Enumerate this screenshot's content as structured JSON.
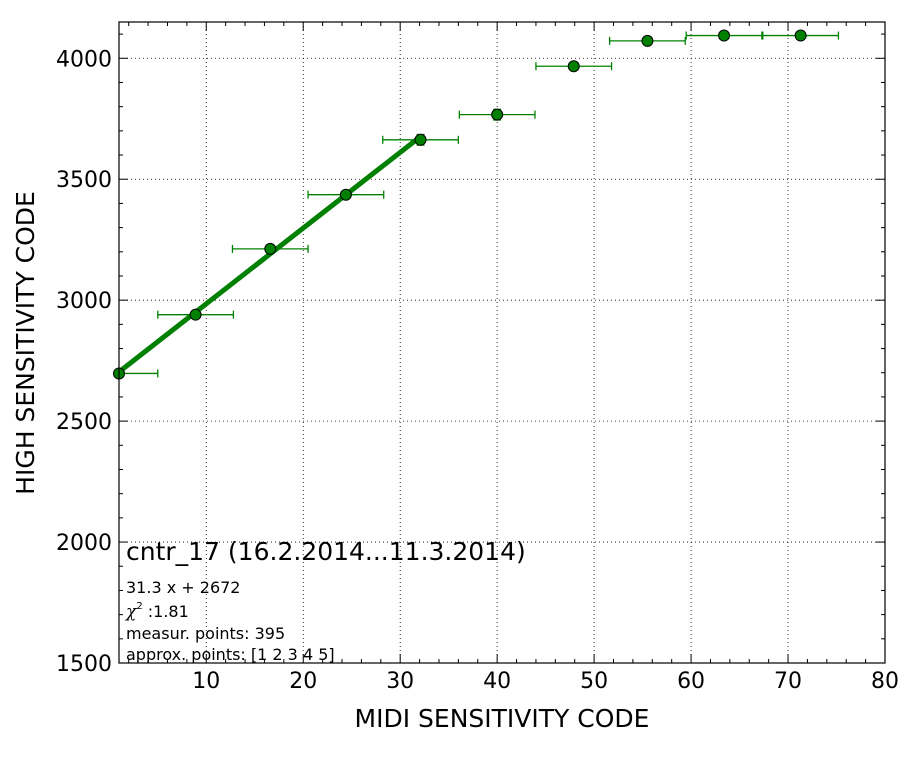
{
  "chart_data": {
    "type": "scatter",
    "title": "",
    "xlabel": "MIDI SENSITIVITY CODE",
    "ylabel": "HIGH SENSITIVITY CODE",
    "xlim": [
      1,
      80
    ],
    "ylim": [
      1500,
      4150
    ],
    "x_ticks": [
      10,
      20,
      30,
      40,
      50,
      60,
      70,
      80
    ],
    "y_ticks": [
      1500,
      2000,
      2500,
      3000,
      3500,
      4000
    ],
    "x_tick_labels": [
      "10",
      "20",
      "30",
      "40",
      "50",
      "60",
      "70",
      "80"
    ],
    "y_tick_labels": [
      "1500",
      "2000",
      "2500",
      "3000",
      "3500",
      "4000"
    ],
    "grid": true,
    "series": [
      {
        "type": "errorbar",
        "color": "#008000",
        "points": [
          {
            "x": 1.0,
            "y": 2697,
            "xerr": 4.0,
            "yerr": 10
          },
          {
            "x": 8.9,
            "y": 2940,
            "xerr": 3.9,
            "yerr": 10
          },
          {
            "x": 16.6,
            "y": 3212,
            "xerr": 3.9,
            "yerr": 10
          },
          {
            "x": 24.4,
            "y": 3436,
            "xerr": 3.9,
            "yerr": 10
          },
          {
            "x": 32.1,
            "y": 3663,
            "xerr": 3.9,
            "yerr": 22
          },
          {
            "x": 40.0,
            "y": 3767,
            "xerr": 3.9,
            "yerr": 22
          },
          {
            "x": 47.9,
            "y": 3967,
            "xerr": 3.9,
            "yerr": 10
          },
          {
            "x": 55.5,
            "y": 4072,
            "xerr": 3.9,
            "yerr": 10
          },
          {
            "x": 63.4,
            "y": 4094,
            "xerr": 3.9,
            "yerr": 10
          },
          {
            "x": 71.3,
            "y": 4094,
            "xerr": 3.9,
            "yerr": 10
          }
        ]
      },
      {
        "type": "fit-line",
        "color": "#008000",
        "slope": 31.3,
        "intercept": 2672,
        "x_range": [
          1.0,
          32.1
        ]
      }
    ],
    "annotations": {
      "title_line": "cntr_17 (16.2.2014...11.3.2014)",
      "fit_line": "31.3 x + 2672",
      "chi_symbol": "χ",
      "chi_sup": "2",
      "chi_value": " :1.81",
      "measur_points": "measur. points: 395",
      "approx_points": "approx. points: [1 2 3 4 5]"
    }
  }
}
